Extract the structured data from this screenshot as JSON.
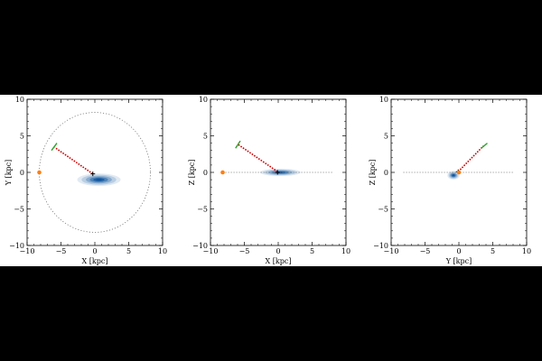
{
  "chart_data": [
    {
      "type": "scatter",
      "projection": "X-Y",
      "xlabel": "X [kpc]",
      "ylabel": "Y [kpc]",
      "xlim": [
        -10,
        10
      ],
      "ylim": [
        -10,
        10
      ],
      "xticks": [
        "−10",
        "−5",
        "0",
        "5",
        "10"
      ],
      "yticks": [
        "−10",
        "−5",
        "0",
        "5",
        "10"
      ],
      "grid": false,
      "reference_circle": {
        "center": [
          0,
          0
        ],
        "radius": 8.2,
        "style": "dotted",
        "color": "#777777"
      },
      "sun_marker": {
        "x": -8.2,
        "y": 0,
        "color": "#ff7f0e"
      },
      "object_marker": {
        "x": -0.3,
        "y": -0.2,
        "color": "#000000"
      },
      "track_start": {
        "x": -0.3,
        "y": -0.2
      },
      "track_end": {
        "x": -5.9,
        "y": 3.4
      },
      "track_color": "#cc0000",
      "green_segment": {
        "from": [
          -6.4,
          3.0
        ],
        "to": [
          -5.6,
          4.0
        ],
        "color": "#2ca02c"
      },
      "density": {
        "cx": 0.6,
        "cy": -1.0,
        "sx": 3.2,
        "sy": 0.85,
        "color": "#08519c"
      }
    },
    {
      "type": "scatter",
      "projection": "X-Z",
      "xlabel": "X [kpc]",
      "ylabel": "Z [kpc]",
      "xlim": [
        -10,
        10
      ],
      "ylim": [
        -10,
        10
      ],
      "xticks": [
        "−10",
        "−5",
        "0",
        "5",
        "10"
      ],
      "yticks": [
        "−10",
        "−5",
        "0",
        "5",
        "10"
      ],
      "grid": false,
      "plane_line": {
        "from": -8.2,
        "to": 8.2,
        "style": "dotted",
        "color": "#777777"
      },
      "sun_marker": {
        "x": -8.2,
        "y": 0,
        "color": "#ff7f0e"
      },
      "object_marker": {
        "x": -0.1,
        "y": 0.0,
        "color": "#000000"
      },
      "track_start": {
        "x": -0.1,
        "y": 0.1
      },
      "track_end": {
        "x": -5.9,
        "y": 3.8
      },
      "track_color": "#cc0000",
      "green_segment": {
        "from": [
          -6.3,
          3.3
        ],
        "to": [
          -5.6,
          4.3
        ],
        "color": "#2ca02c"
      },
      "density": {
        "cx": 0.3,
        "cy": 0.0,
        "sx": 3.0,
        "sy": 0.5,
        "color": "#08519c"
      }
    },
    {
      "type": "scatter",
      "projection": "Y-Z",
      "xlabel": "Y [kpc]",
      "ylabel": "Z [kpc]",
      "xlim": [
        -10,
        10
      ],
      "ylim": [
        -10,
        10
      ],
      "xticks": [
        "−10",
        "−5",
        "0",
        "5",
        "10"
      ],
      "yticks": [
        "−10",
        "−5",
        "0",
        "5",
        "10"
      ],
      "grid": false,
      "plane_line": {
        "from": -8.2,
        "to": 8.2,
        "style": "dotted",
        "color": "#777777"
      },
      "sun_marker": {
        "x": 0.0,
        "y": 0,
        "color": "#ff7f0e"
      },
      "object_marker": {
        "x": -0.1,
        "y": 0.1,
        "color": "#000000"
      },
      "track_start": {
        "x": -0.1,
        "y": 0.1
      },
      "track_end": {
        "x": 3.6,
        "y": 3.6
      },
      "track_color": "#cc0000",
      "green_segment": {
        "from": [
          3.3,
          3.3
        ],
        "to": [
          4.2,
          4.0
        ],
        "color": "#2ca02c"
      },
      "density": {
        "cx": -0.8,
        "cy": -0.4,
        "sx": 0.9,
        "sy": 0.6,
        "color": "#08519c"
      }
    }
  ]
}
